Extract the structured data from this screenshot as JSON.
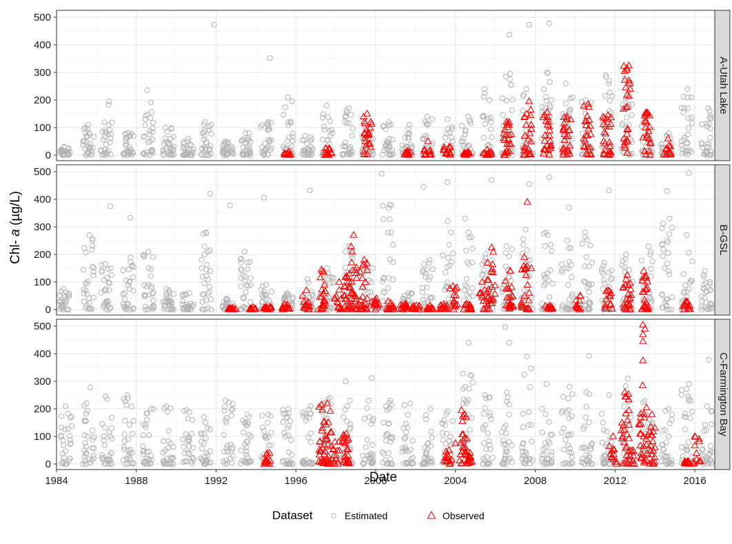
{
  "chart_data": {
    "type": "scatter",
    "xlabel": "Date",
    "ylabel_prefix": "Chl- ",
    "ylabel_italic": "a",
    "ylabel_suffix": " (µg/L)",
    "xlim": [
      1984,
      2017
    ],
    "ylim": [
      -20,
      525
    ],
    "x_ticks": [
      1984,
      1988,
      1992,
      1996,
      2000,
      2004,
      2008,
      2012,
      2016
    ],
    "y_ticks": [
      0,
      100,
      200,
      300,
      400,
      500
    ],
    "grid": true,
    "legend": {
      "title": "Dataset",
      "placement": "bottom",
      "entries": [
        {
          "label": "Estimated",
          "shape": "circle",
          "color": "#b3b3b3"
        },
        {
          "label": "Observed",
          "shape": "triangle",
          "color": "#ff0000"
        }
      ]
    },
    "colors": {
      "estimated": "#b3b3b3",
      "observed": "#ff0000",
      "strip": "#d9d9d9",
      "grid": "#ebebeb"
    },
    "panels": [
      {
        "name": "A-Utah Lake",
        "estimated": {
          "clusters": [
            {
              "x": 1984.4,
              "max": 30
            },
            {
              "x": 1985.6,
              "max": 110
            },
            {
              "x": 1986.5,
              "max": 195
            },
            {
              "x": 1987.6,
              "max": 80
            },
            {
              "x": 1988.6,
              "max": 235
            },
            {
              "x": 1989.6,
              "max": 100
            },
            {
              "x": 1990.6,
              "max": 60
            },
            {
              "x": 1991.5,
              "max": 120
            },
            {
              "x": 1992.6,
              "max": 50
            },
            {
              "x": 1993.5,
              "max": 80
            },
            {
              "x": 1994.5,
              "max": 120
            },
            {
              "x": 1995.6,
              "max": 210
            },
            {
              "x": 1996.6,
              "max": 70
            },
            {
              "x": 1997.6,
              "max": 180
            },
            {
              "x": 1998.6,
              "max": 170
            },
            {
              "x": 1999.6,
              "max": 100
            },
            {
              "x": 2000.6,
              "max": 120
            },
            {
              "x": 2001.6,
              "max": 110
            },
            {
              "x": 2002.6,
              "max": 140
            },
            {
              "x": 2003.6,
              "max": 130
            },
            {
              "x": 2004.6,
              "max": 140
            },
            {
              "x": 2005.6,
              "max": 240
            },
            {
              "x": 2006.6,
              "max": 295
            },
            {
              "x": 2007.6,
              "max": 240
            },
            {
              "x": 2008.6,
              "max": 300
            },
            {
              "x": 2009.6,
              "max": 260
            },
            {
              "x": 2010.6,
              "max": 200
            },
            {
              "x": 2011.6,
              "max": 290
            },
            {
              "x": 2012.6,
              "max": 280
            },
            {
              "x": 2013.6,
              "max": 140
            },
            {
              "x": 2014.6,
              "max": 80
            },
            {
              "x": 2015.6,
              "max": 240
            },
            {
              "x": 2016.6,
              "max": 170
            }
          ],
          "extra": [
            [
              1991.9,
              473
            ],
            [
              1994.7,
              352
            ],
            [
              2006.7,
              437
            ],
            [
              2007.7,
              473
            ],
            [
              2008.7,
              478
            ]
          ]
        },
        "observed": {
          "clusters": [
            {
              "x": 1995.6,
              "max": 12
            },
            {
              "x": 1997.6,
              "max": 25
            },
            {
              "x": 1999.6,
              "max": 150
            },
            {
              "x": 2001.6,
              "max": 15
            },
            {
              "x": 2002.6,
              "max": 50
            },
            {
              "x": 2003.6,
              "max": 30
            },
            {
              "x": 2004.6,
              "max": 10
            },
            {
              "x": 2005.6,
              "max": 20
            },
            {
              "x": 2006.6,
              "max": 120
            },
            {
              "x": 2007.6,
              "max": 195
            },
            {
              "x": 2008.6,
              "max": 155
            },
            {
              "x": 2009.6,
              "max": 140
            },
            {
              "x": 2010.6,
              "max": 185
            },
            {
              "x": 2011.6,
              "max": 145
            },
            {
              "x": 2012.6,
              "max": 325
            },
            {
              "x": 2013.6,
              "max": 155
            },
            {
              "x": 2014.6,
              "max": 60
            }
          ],
          "extra": [
            [
              2012.7,
              270
            ],
            [
              2012.6,
              218
            ]
          ]
        }
      },
      {
        "name": "B-GSL",
        "estimated": {
          "clusters": [
            {
              "x": 1984.4,
              "max": 75
            },
            {
              "x": 1985.6,
              "max": 270
            },
            {
              "x": 1986.5,
              "max": 165
            },
            {
              "x": 1987.6,
              "max": 190
            },
            {
              "x": 1988.6,
              "max": 210
            },
            {
              "x": 1989.6,
              "max": 75
            },
            {
              "x": 1990.6,
              "max": 60
            },
            {
              "x": 1991.5,
              "max": 280
            },
            {
              "x": 1992.6,
              "max": 40
            },
            {
              "x": 1993.5,
              "max": 210
            },
            {
              "x": 1994.5,
              "max": 90
            },
            {
              "x": 1995.6,
              "max": 60
            },
            {
              "x": 1996.6,
              "max": 110
            },
            {
              "x": 1997.6,
              "max": 150
            },
            {
              "x": 1998.6,
              "max": 230
            },
            {
              "x": 1999.6,
              "max": 160
            },
            {
              "x": 2000.6,
              "max": 380
            },
            {
              "x": 2001.6,
              "max": 60
            },
            {
              "x": 2002.6,
              "max": 180
            },
            {
              "x": 2003.6,
              "max": 320
            },
            {
              "x": 2004.6,
              "max": 330
            },
            {
              "x": 2005.6,
              "max": 200
            },
            {
              "x": 2006.6,
              "max": 230
            },
            {
              "x": 2007.6,
              "max": 290
            },
            {
              "x": 2008.6,
              "max": 280
            },
            {
              "x": 2009.6,
              "max": 250
            },
            {
              "x": 2010.6,
              "max": 280
            },
            {
              "x": 2011.6,
              "max": 170
            },
            {
              "x": 2012.6,
              "max": 200
            },
            {
              "x": 2013.6,
              "max": 230
            },
            {
              "x": 2014.6,
              "max": 330
            },
            {
              "x": 2015.6,
              "max": 270
            },
            {
              "x": 2016.6,
              "max": 140
            }
          ],
          "extra": [
            [
              1986.7,
              375
            ],
            [
              1987.7,
              333
            ],
            [
              1991.7,
              420
            ],
            [
              1992.7,
              378
            ],
            [
              1994.4,
              405
            ],
            [
              1996.7,
              432
            ],
            [
              2000.3,
              493
            ],
            [
              2002.4,
              445
            ],
            [
              2003.6,
              462
            ],
            [
              2005.8,
              470
            ],
            [
              2007.7,
              455
            ],
            [
              2008.7,
              480
            ],
            [
              2009.7,
              370
            ],
            [
              2011.7,
              432
            ],
            [
              2014.6,
              430
            ],
            [
              2015.7,
              495
            ]
          ]
        },
        "observed": {
          "clusters": [
            {
              "x": 1992.8,
              "max": 5
            },
            {
              "x": 1993.8,
              "max": 8
            },
            {
              "x": 1994.6,
              "max": 10
            },
            {
              "x": 1995.5,
              "max": 20
            },
            {
              "x": 1996.5,
              "max": 70
            },
            {
              "x": 1997.3,
              "max": 145
            },
            {
              "x": 1998.1,
              "max": 100
            },
            {
              "x": 1998.6,
              "max": 130
            },
            {
              "x": 1998.9,
              "max": 270
            },
            {
              "x": 1999.4,
              "max": 180
            },
            {
              "x": 2000.0,
              "max": 40
            },
            {
              "x": 2000.7,
              "max": 30
            },
            {
              "x": 2001.4,
              "max": 20
            },
            {
              "x": 2002.0,
              "max": 15
            },
            {
              "x": 2002.7,
              "max": 15
            },
            {
              "x": 2003.4,
              "max": 20
            },
            {
              "x": 2003.9,
              "max": 85
            },
            {
              "x": 2004.6,
              "max": 20
            },
            {
              "x": 2005.4,
              "max": 100
            },
            {
              "x": 2005.8,
              "max": 225
            },
            {
              "x": 2006.7,
              "max": 140
            },
            {
              "x": 2007.5,
              "max": 190
            },
            {
              "x": 2008.7,
              "max": 15
            },
            {
              "x": 2010.2,
              "max": 50
            },
            {
              "x": 2011.7,
              "max": 70
            },
            {
              "x": 2012.6,
              "max": 125
            },
            {
              "x": 2013.5,
              "max": 140
            },
            {
              "x": 2015.6,
              "max": 30
            }
          ],
          "extra": [
            [
              2007.6,
              390
            ],
            [
              2007.8,
              150
            ],
            [
              2013.6,
              80
            ]
          ]
        }
      },
      {
        "name": "C-Farmington Bay",
        "estimated": {
          "clusters": [
            {
              "x": 1984.5,
              "max": 210
            },
            {
              "x": 1985.6,
              "max": 220
            },
            {
              "x": 1986.5,
              "max": 245
            },
            {
              "x": 1987.6,
              "max": 250
            },
            {
              "x": 1988.6,
              "max": 200
            },
            {
              "x": 1989.6,
              "max": 210
            },
            {
              "x": 1990.6,
              "max": 195
            },
            {
              "x": 1991.5,
              "max": 170
            },
            {
              "x": 1992.6,
              "max": 230
            },
            {
              "x": 1993.5,
              "max": 180
            },
            {
              "x": 1994.5,
              "max": 180
            },
            {
              "x": 1995.6,
              "max": 200
            },
            {
              "x": 1996.6,
              "max": 210
            },
            {
              "x": 1997.6,
              "max": 240
            },
            {
              "x": 1998.6,
              "max": 230
            },
            {
              "x": 1999.6,
              "max": 230
            },
            {
              "x": 2000.6,
              "max": 230
            },
            {
              "x": 2001.6,
              "max": 220
            },
            {
              "x": 2002.6,
              "max": 200
            },
            {
              "x": 2003.6,
              "max": 190
            },
            {
              "x": 2004.6,
              "max": 440
            },
            {
              "x": 2005.6,
              "max": 250
            },
            {
              "x": 2006.6,
              "max": 260
            },
            {
              "x": 2007.6,
              "max": 390
            },
            {
              "x": 2008.6,
              "max": 290
            },
            {
              "x": 2009.6,
              "max": 280
            },
            {
              "x": 2010.6,
              "max": 260
            },
            {
              "x": 2011.6,
              "max": 250
            },
            {
              "x": 2012.6,
              "max": 310
            },
            {
              "x": 2013.6,
              "max": 230
            },
            {
              "x": 2014.6,
              "max": 200
            },
            {
              "x": 2015.6,
              "max": 290
            },
            {
              "x": 2016.6,
              "max": 210
            }
          ],
          "extra": [
            [
              1985.7,
              278
            ],
            [
              1998.5,
              300
            ],
            [
              1999.8,
              312
            ],
            [
              2006.5,
              497
            ],
            [
              2006.7,
              440
            ],
            [
              2010.7,
              392
            ],
            [
              2016.7,
              378
            ]
          ]
        },
        "observed": {
          "clusters": [
            {
              "x": 1994.6,
              "max": 40
            },
            {
              "x": 1997.3,
              "max": 215
            },
            {
              "x": 1997.6,
              "max": 220
            },
            {
              "x": 1998.0,
              "max": 80
            },
            {
              "x": 1998.5,
              "max": 110
            },
            {
              "x": 2003.6,
              "max": 50
            },
            {
              "x": 2004.4,
              "max": 195
            },
            {
              "x": 2004.7,
              "max": 40
            },
            {
              "x": 2011.9,
              "max": 100
            },
            {
              "x": 2012.5,
              "max": 260
            },
            {
              "x": 2012.8,
              "max": 50
            },
            {
              "x": 2013.4,
              "max": 285
            },
            {
              "x": 2013.8,
              "max": 180
            },
            {
              "x": 2015.6,
              "max": 10
            },
            {
              "x": 2016.1,
              "max": 100
            }
          ],
          "extra": [
            [
              2013.4,
              505
            ],
            [
              2013.5,
              490
            ],
            [
              2013.4,
              470
            ],
            [
              2013.4,
              445
            ],
            [
              2013.4,
              375
            ],
            [
              2004.0,
              75
            ],
            [
              2003.8,
              15
            ],
            [
              1997.7,
              5
            ]
          ]
        }
      }
    ]
  }
}
